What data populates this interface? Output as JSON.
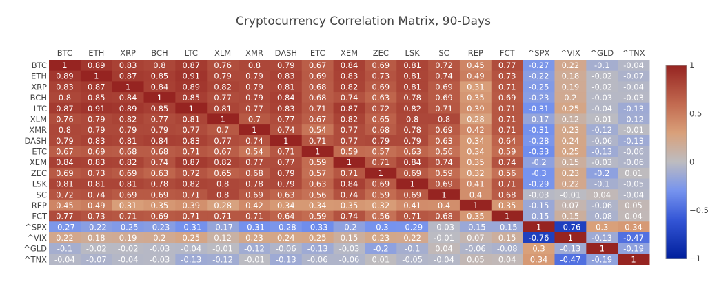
{
  "chart_data": {
    "type": "heatmap",
    "title": "Cryptocurrency Correlation Matrix, 90-Days",
    "xlabel": "",
    "ylabel": "",
    "x": [
      "BTC",
      "ETH",
      "XRP",
      "BCH",
      "LTC",
      "XLM",
      "XMR",
      "DASH",
      "ETC",
      "XEM",
      "ZEC",
      "LSK",
      "SC",
      "REP",
      "FCT",
      "^SPX",
      "^VIX",
      "^GLD",
      "^TNX"
    ],
    "y": [
      "BTC",
      "ETH",
      "XRP",
      "BCH",
      "LTC",
      "XLM",
      "XMR",
      "DASH",
      "ETC",
      "XEM",
      "ZEC",
      "LSK",
      "SC",
      "REP",
      "FCT",
      "^SPX",
      "^VIX",
      "^GLD",
      "^TNX"
    ],
    "z": [
      [
        1,
        0.89,
        0.83,
        0.8,
        0.87,
        0.76,
        0.8,
        0.79,
        0.67,
        0.84,
        0.69,
        0.81,
        0.72,
        0.45,
        0.77,
        -0.27,
        0.22,
        -0.1,
        -0.04
      ],
      [
        0.89,
        1,
        0.87,
        0.85,
        0.91,
        0.79,
        0.79,
        0.83,
        0.69,
        0.83,
        0.73,
        0.81,
        0.74,
        0.49,
        0.73,
        -0.22,
        0.18,
        -0.02,
        -0.07
      ],
      [
        0.83,
        0.87,
        1,
        0.84,
        0.89,
        0.82,
        0.79,
        0.81,
        0.68,
        0.82,
        0.69,
        0.81,
        0.69,
        0.31,
        0.71,
        -0.25,
        0.19,
        -0.02,
        -0.04
      ],
      [
        0.8,
        0.85,
        0.84,
        1,
        0.85,
        0.77,
        0.79,
        0.84,
        0.68,
        0.74,
        0.63,
        0.78,
        0.69,
        0.35,
        0.69,
        -0.23,
        0.2,
        -0.03,
        -0.03
      ],
      [
        0.87,
        0.91,
        0.89,
        0.85,
        1,
        0.81,
        0.77,
        0.83,
        0.71,
        0.87,
        0.72,
        0.82,
        0.71,
        0.39,
        0.71,
        -0.31,
        0.25,
        -0.04,
        -0.13
      ],
      [
        0.76,
        0.79,
        0.82,
        0.77,
        0.81,
        1,
        0.7,
        0.77,
        0.67,
        0.82,
        0.65,
        0.8,
        0.8,
        0.28,
        0.71,
        -0.17,
        0.12,
        -0.01,
        -0.12
      ],
      [
        0.8,
        0.79,
        0.79,
        0.79,
        0.77,
        0.7,
        1,
        0.74,
        0.54,
        0.77,
        0.68,
        0.78,
        0.69,
        0.42,
        0.71,
        -0.31,
        0.23,
        -0.12,
        -0.01
      ],
      [
        0.79,
        0.83,
        0.81,
        0.84,
        0.83,
        0.77,
        0.74,
        1,
        0.71,
        0.77,
        0.79,
        0.79,
        0.63,
        0.34,
        0.64,
        -0.28,
        0.24,
        -0.06,
        -0.13
      ],
      [
        0.67,
        0.69,
        0.68,
        0.68,
        0.71,
        0.67,
        0.54,
        0.71,
        1,
        0.59,
        0.57,
        0.63,
        0.56,
        0.34,
        0.59,
        -0.33,
        0.25,
        -0.13,
        -0.06
      ],
      [
        0.84,
        0.83,
        0.82,
        0.74,
        0.87,
        0.82,
        0.77,
        0.77,
        0.59,
        1,
        0.71,
        0.84,
        0.74,
        0.35,
        0.74,
        -0.2,
        0.15,
        -0.03,
        -0.06
      ],
      [
        0.69,
        0.73,
        0.69,
        0.63,
        0.72,
        0.65,
        0.68,
        0.79,
        0.57,
        0.71,
        1,
        0.69,
        0.59,
        0.32,
        0.56,
        -0.3,
        0.23,
        -0.2,
        0.01
      ],
      [
        0.81,
        0.81,
        0.81,
        0.78,
        0.82,
        0.8,
        0.78,
        0.79,
        0.63,
        0.84,
        0.69,
        1,
        0.69,
        0.41,
        0.71,
        -0.29,
        0.22,
        -0.1,
        -0.05
      ],
      [
        0.72,
        0.74,
        0.69,
        0.69,
        0.71,
        0.8,
        0.69,
        0.63,
        0.56,
        0.74,
        0.59,
        0.69,
        1,
        0.4,
        0.68,
        -0.03,
        -0.01,
        0.04,
        -0.04
      ],
      [
        0.45,
        0.49,
        0.31,
        0.35,
        0.39,
        0.28,
        0.42,
        0.34,
        0.34,
        0.35,
        0.32,
        0.41,
        0.4,
        1,
        0.35,
        -0.15,
        0.07,
        -0.06,
        0.05
      ],
      [
        0.77,
        0.73,
        0.71,
        0.69,
        0.71,
        0.71,
        0.71,
        0.64,
        0.59,
        0.74,
        0.56,
        0.71,
        0.68,
        0.35,
        1,
        -0.15,
        0.15,
        -0.08,
        0.04
      ],
      [
        -0.27,
        -0.22,
        -0.25,
        -0.23,
        -0.31,
        -0.17,
        -0.31,
        -0.28,
        -0.33,
        -0.2,
        -0.3,
        -0.29,
        -0.03,
        -0.15,
        -0.15,
        1,
        -0.76,
        0.3,
        0.34
      ],
      [
        0.22,
        0.18,
        0.19,
        0.2,
        0.25,
        0.12,
        0.23,
        0.24,
        0.25,
        0.15,
        0.23,
        0.22,
        -0.01,
        0.07,
        0.15,
        -0.76,
        1,
        -0.13,
        -0.47
      ],
      [
        -0.1,
        -0.02,
        -0.02,
        -0.03,
        -0.04,
        -0.01,
        -0.12,
        -0.06,
        -0.13,
        -0.03,
        -0.2,
        -0.1,
        0.04,
        -0.06,
        -0.08,
        0.3,
        -0.13,
        1,
        -0.19
      ],
      [
        -0.04,
        -0.07,
        -0.04,
        -0.03,
        -0.13,
        -0.12,
        -0.01,
        -0.13,
        -0.06,
        -0.06,
        0.01,
        -0.05,
        -0.04,
        0.05,
        0.04,
        0.34,
        -0.47,
        -0.19,
        1
      ]
    ],
    "zlim": [
      -1,
      1
    ],
    "colorscale": [
      [
        0,
        "#001f9c"
      ],
      [
        0.2,
        "#3456d6"
      ],
      [
        0.35,
        "#7693ee"
      ],
      [
        0.5,
        "#bdbcc0"
      ],
      [
        0.65,
        "#d9a07a"
      ],
      [
        0.8,
        "#c26a50"
      ],
      [
        1,
        "#962421"
      ]
    ],
    "colorbar": {
      "ticks": [
        1,
        0.5,
        0,
        -0.5,
        -1
      ],
      "tick_labels": [
        "1",
        "0.5",
        "0",
        "−0.5",
        "−1"
      ]
    },
    "xaxis_side": "top",
    "annotations": "cell values shown in each cell"
  }
}
